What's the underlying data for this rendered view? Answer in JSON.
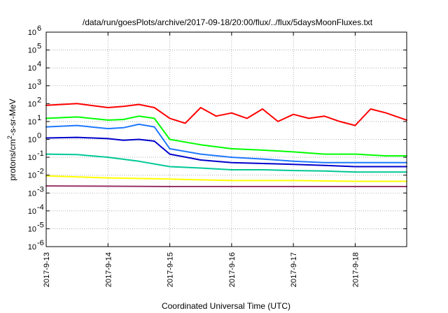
{
  "chart_data": {
    "type": "line",
    "title": "/data/run/goesPlots/archive/2017-09-18/20:00/flux/../flux/5daysMoonFluxes.txt",
    "xlabel": "Coordinated Universal Time (UTC)",
    "ylabel_parts": {
      "base": "protons/cm",
      "sup": "2",
      "rest": "-s-sr-MeV"
    },
    "y_scale": "log",
    "ylim": [
      1e-06,
      1000000.0
    ],
    "y_ticks": [
      {
        "base": "10",
        "exp": "-6",
        "value": 1e-06
      },
      {
        "base": "10",
        "exp": "-5",
        "value": 1e-05
      },
      {
        "base": "10",
        "exp": "-4",
        "value": 0.0001
      },
      {
        "base": "10",
        "exp": "-3",
        "value": 0.001
      },
      {
        "base": "10",
        "exp": "-2",
        "value": 0.01
      },
      {
        "base": "10",
        "exp": "-1",
        "value": 0.1
      },
      {
        "base": "10",
        "exp": "0",
        "value": 1
      },
      {
        "base": "10",
        "exp": "1",
        "value": 10
      },
      {
        "base": "10",
        "exp": "2",
        "value": 100
      },
      {
        "base": "10",
        "exp": "3",
        "value": 1000
      },
      {
        "base": "10",
        "exp": "4",
        "value": 10000
      },
      {
        "base": "10",
        "exp": "5",
        "value": 100000
      },
      {
        "base": "10",
        "exp": "6",
        "value": 1000000
      }
    ],
    "x_ticks": [
      "2017-9-13",
      "2017-9-14",
      "2017-9-15",
      "2017-9-16",
      "2017-9-17",
      "2017-9-18"
    ],
    "xlim": [
      "2017-9-13",
      "2017-9-18 20:00"
    ],
    "grid": true,
    "series": [
      {
        "color": "#ff0000",
        "x": [
          "2017-9-13 00:00",
          "2017-9-13 12:00",
          "2017-9-14 00:00",
          "2017-9-14 06:00",
          "2017-9-14 12:00",
          "2017-9-14 18:00",
          "2017-9-15 00:00",
          "2017-9-15 06:00",
          "2017-9-15 12:00",
          "2017-9-15 18:00",
          "2017-9-16 00:00",
          "2017-9-16 06:00",
          "2017-9-16 12:00",
          "2017-9-16 18:00",
          "2017-9-17 00:00",
          "2017-9-17 06:00",
          "2017-9-17 12:00",
          "2017-9-17 18:00",
          "2017-9-18 00:00",
          "2017-9-18 06:00",
          "2017-9-18 12:00",
          "2017-9-18 20:00"
        ],
        "values": [
          80,
          100,
          60,
          70,
          90,
          60,
          15,
          8,
          60,
          20,
          30,
          15,
          50,
          10,
          25,
          15,
          20,
          10,
          6,
          50,
          30,
          12
        ]
      },
      {
        "color": "#00ff00",
        "x": [
          "2017-9-13 00:00",
          "2017-9-13 12:00",
          "2017-9-14 00:00",
          "2017-9-14 06:00",
          "2017-9-14 12:00",
          "2017-9-14 18:00",
          "2017-9-15 00:00",
          "2017-9-15 12:00",
          "2017-9-16 00:00",
          "2017-9-16 12:00",
          "2017-9-17 00:00",
          "2017-9-17 12:00",
          "2017-9-18 00:00",
          "2017-9-18 12:00",
          "2017-9-18 20:00"
        ],
        "values": [
          15,
          18,
          12,
          13,
          20,
          15,
          1.0,
          0.5,
          0.3,
          0.25,
          0.2,
          0.15,
          0.15,
          0.12,
          0.12
        ]
      },
      {
        "color": "#1e78ff",
        "x": [
          "2017-9-13 00:00",
          "2017-9-13 12:00",
          "2017-9-14 00:00",
          "2017-9-14 06:00",
          "2017-9-14 12:00",
          "2017-9-14 18:00",
          "2017-9-15 00:00",
          "2017-9-15 12:00",
          "2017-9-16 00:00",
          "2017-9-16 12:00",
          "2017-9-17 00:00",
          "2017-9-17 12:00",
          "2017-9-18 00:00",
          "2017-9-18 12:00",
          "2017-9-18 20:00"
        ],
        "values": [
          5,
          6,
          4,
          4.5,
          7,
          5,
          0.3,
          0.15,
          0.1,
          0.08,
          0.06,
          0.05,
          0.05,
          0.05,
          0.05
        ]
      },
      {
        "color": "#0000cc",
        "x": [
          "2017-9-13 00:00",
          "2017-9-13 12:00",
          "2017-9-14 00:00",
          "2017-9-14 06:00",
          "2017-9-14 12:00",
          "2017-9-14 18:00",
          "2017-9-15 00:00",
          "2017-9-15 12:00",
          "2017-9-16 00:00",
          "2017-9-16 12:00",
          "2017-9-17 00:00",
          "2017-9-17 12:00",
          "2017-9-18 00:00",
          "2017-9-18 12:00",
          "2017-9-18 20:00"
        ],
        "values": [
          1.2,
          1.3,
          1.1,
          0.9,
          1.0,
          0.8,
          0.15,
          0.07,
          0.05,
          0.045,
          0.04,
          0.035,
          0.03,
          0.03,
          0.03
        ]
      },
      {
        "color": "#00c896",
        "x": [
          "2017-9-13 00:00",
          "2017-9-13 12:00",
          "2017-9-14 00:00",
          "2017-9-14 12:00",
          "2017-9-15 00:00",
          "2017-9-15 12:00",
          "2017-9-16 00:00",
          "2017-9-16 12:00",
          "2017-9-17 00:00",
          "2017-9-17 12:00",
          "2017-9-18 00:00",
          "2017-9-18 12:00",
          "2017-9-18 20:00"
        ],
        "values": [
          0.15,
          0.14,
          0.1,
          0.06,
          0.03,
          0.025,
          0.02,
          0.02,
          0.018,
          0.017,
          0.015,
          0.015,
          0.015
        ]
      },
      {
        "color": "#ffff00",
        "x": [
          "2017-9-13 00:00",
          "2017-9-14 00:00",
          "2017-9-15 00:00",
          "2017-9-16 00:00",
          "2017-9-17 00:00",
          "2017-9-18 00:00",
          "2017-9-18 20:00"
        ],
        "values": [
          0.009,
          0.007,
          0.006,
          0.005,
          0.005,
          0.0045,
          0.0045
        ]
      },
      {
        "color": "#993366",
        "x": [
          "2017-9-13 00:00",
          "2017-9-14 00:00",
          "2017-9-15 00:00",
          "2017-9-16 00:00",
          "2017-9-17 00:00",
          "2017-9-18 00:00",
          "2017-9-18 20:00"
        ],
        "values": [
          0.0025,
          0.0024,
          0.0023,
          0.0023,
          0.0023,
          0.0023,
          0.0023
        ]
      }
    ]
  }
}
